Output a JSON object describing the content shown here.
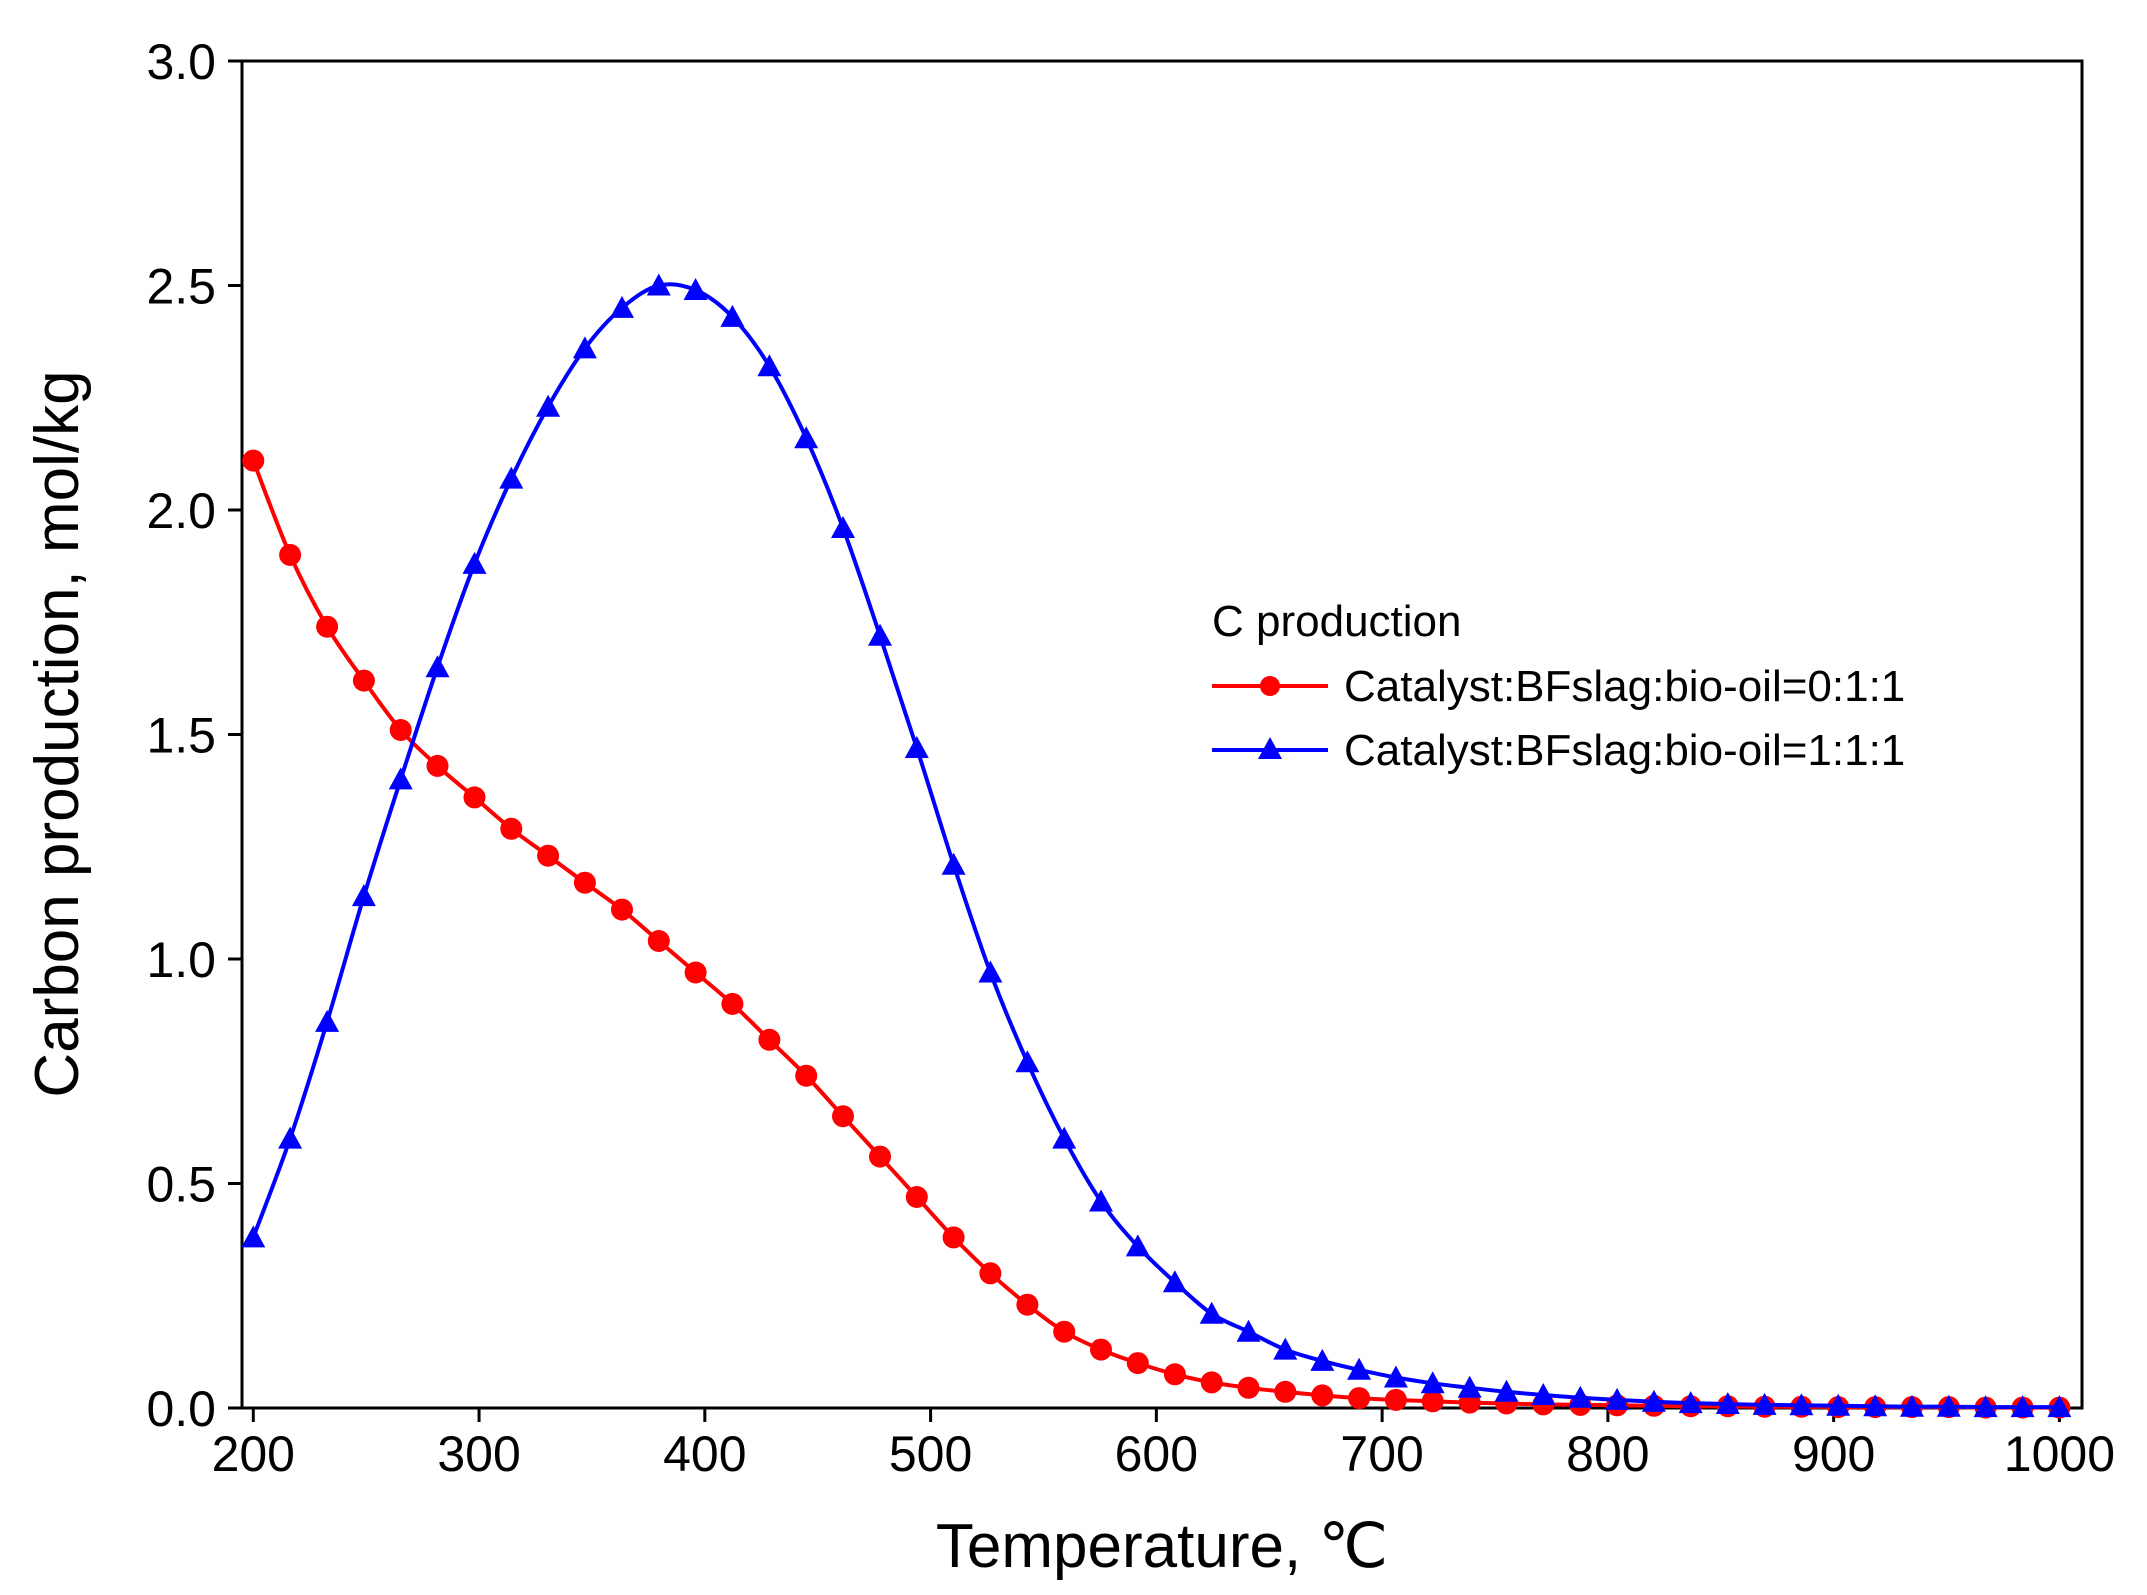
{
  "chart_data": {
    "type": "line",
    "title": "",
    "xlabel": "Temperature, ℃",
    "ylabel": "Carbon production, mol/kg",
    "xlim": [
      195,
      1010
    ],
    "ylim": [
      0.0,
      3.0
    ],
    "xticks": [
      200,
      300,
      400,
      500,
      600,
      700,
      800,
      900,
      1000
    ],
    "xtick_labels": [
      "200",
      "300",
      "400",
      "500",
      "600",
      "700",
      "800",
      "900",
      "1000"
    ],
    "yticks": [
      0.0,
      0.5,
      1.0,
      1.5,
      2.0,
      2.5,
      3.0
    ],
    "ytick_labels": [
      "0.0",
      "0.5",
      "1.0",
      "1.5",
      "2.0",
      "2.5",
      "3.0"
    ],
    "grid": false,
    "legend": {
      "title": "C production",
      "position": "center-right"
    },
    "x": [
      200,
      216.3,
      232.7,
      249,
      265.3,
      281.6,
      298,
      314.3,
      330.6,
      346.9,
      363.3,
      379.6,
      395.9,
      412.2,
      428.6,
      444.9,
      461.2,
      477.6,
      493.9,
      510.2,
      526.5,
      542.9,
      559.2,
      575.5,
      591.8,
      608.2,
      624.5,
      640.8,
      657.1,
      673.5,
      689.8,
      706.1,
      722.4,
      738.8,
      755.1,
      771.4,
      787.8,
      804.1,
      820.4,
      836.7,
      853.1,
      869.4,
      885.7,
      902,
      918.4,
      934.7,
      951,
      967.3,
      983.7,
      1000
    ],
    "series": [
      {
        "name": "Catalyst:BFslag:bio-oil=0:1:1",
        "color": "#ff0000",
        "marker": "circle",
        "values": [
          2.11,
          1.9,
          1.74,
          1.62,
          1.51,
          1.43,
          1.36,
          1.29,
          1.23,
          1.17,
          1.11,
          1.04,
          0.97,
          0.9,
          0.82,
          0.74,
          0.65,
          0.56,
          0.47,
          0.38,
          0.3,
          0.23,
          0.17,
          0.13,
          0.1,
          0.075,
          0.057,
          0.045,
          0.036,
          0.028,
          0.022,
          0.018,
          0.015,
          0.012,
          0.01,
          0.008,
          0.007,
          0.006,
          0.005,
          0.004,
          0.004,
          0.003,
          0.003,
          0.002,
          0.002,
          0.002,
          0.002,
          0.001,
          0.001,
          0.001
        ]
      },
      {
        "name": "Catalyst:BFslag:bio-oil=1:1:1",
        "color": "#0000ff",
        "marker": "triangle",
        "values": [
          0.38,
          0.6,
          0.86,
          1.14,
          1.4,
          1.65,
          1.88,
          2.07,
          2.23,
          2.36,
          2.45,
          2.5,
          2.49,
          2.43,
          2.32,
          2.16,
          1.96,
          1.72,
          1.47,
          1.21,
          0.97,
          0.77,
          0.6,
          0.46,
          0.36,
          0.28,
          0.21,
          0.17,
          0.13,
          0.105,
          0.085,
          0.068,
          0.055,
          0.045,
          0.036,
          0.029,
          0.023,
          0.018,
          0.014,
          0.011,
          0.009,
          0.007,
          0.006,
          0.005,
          0.004,
          0.003,
          0.003,
          0.002,
          0.002,
          0.002
        ]
      }
    ]
  }
}
